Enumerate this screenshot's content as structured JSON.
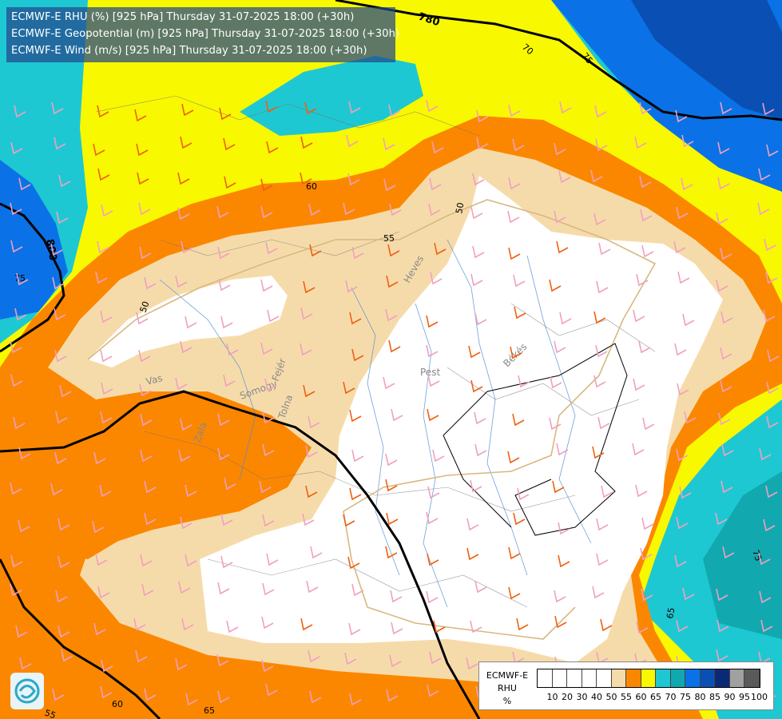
{
  "title": {
    "line1": "ECMWF-E RHU (%) [925 hPa] Thursday 31-07-2025 18:00 (+30h)",
    "line2": "ECMWF-E Geopotential (m) [925 hPa] Thursday 31-07-2025 18:00 (+30h)",
    "line3": "ECMWF-E Wind (m/s) [925 hPa] Thursday 31-07-2025 18:00 (+30h)"
  },
  "legend": {
    "line1": "ECMWF-E",
    "line2": "RHU",
    "line3": "%",
    "classes": [
      {
        "label": "10",
        "color": "#ffffff"
      },
      {
        "label": "20",
        "color": "#ffffff"
      },
      {
        "label": "30",
        "color": "#ffffff"
      },
      {
        "label": "40",
        "color": "#ffffff"
      },
      {
        "label": "50",
        "color": "#ffffff"
      },
      {
        "label": "55",
        "color": "#f6dbaa"
      },
      {
        "label": "60",
        "color": "#fb8700"
      },
      {
        "label": "65",
        "color": "#f8f800"
      },
      {
        "label": "70",
        "color": "#1ec8d2"
      },
      {
        "label": "75",
        "color": "#12a8b0"
      },
      {
        "label": "80",
        "color": "#0a72e6"
      },
      {
        "label": "85",
        "color": "#0a50b4"
      },
      {
        "label": "90",
        "color": "#0a2a78"
      },
      {
        "label": "95",
        "color": "#a0a0a0"
      },
      {
        "label": "100",
        "color": "#5a5a5a"
      }
    ]
  },
  "map_labels": {
    "geopotential": [
      "780",
      "800"
    ],
    "rhu_contours": [
      "50",
      "55",
      "60",
      "65",
      "70",
      "75"
    ],
    "regions": [
      "Heves",
      "Pest",
      "Békés",
      "Vas",
      "Somogy",
      "Fejér",
      "Zala",
      "Tolna"
    ]
  }
}
